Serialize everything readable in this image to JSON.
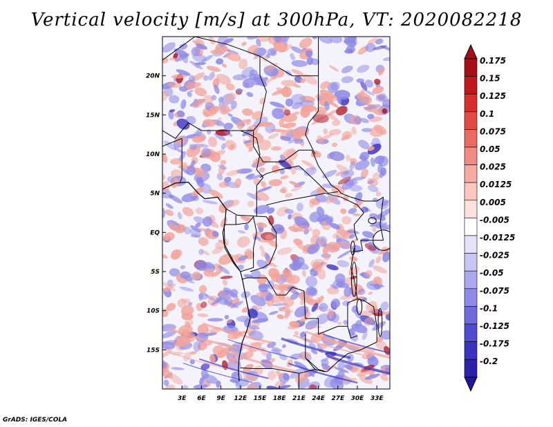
{
  "title": "Vertical velocity [m/s] at 300hPa, VT: 2020082218",
  "credit": "GrADS: IGES/COLA",
  "map": {
    "lon_range": [
      0,
      35
    ],
    "lat_range": [
      -20,
      25
    ],
    "lat_ticks": [
      {
        "value": 20,
        "label": "20N"
      },
      {
        "value": 15,
        "label": "15N"
      },
      {
        "value": 10,
        "label": "10N"
      },
      {
        "value": 5,
        "label": "5N"
      },
      {
        "value": 0,
        "label": "EQ"
      },
      {
        "value": -5,
        "label": "5S"
      },
      {
        "value": -10,
        "label": "10S"
      },
      {
        "value": -15,
        "label": "15S"
      }
    ],
    "lon_ticks": [
      {
        "value": 3,
        "label": "3E"
      },
      {
        "value": 6,
        "label": "6E"
      },
      {
        "value": 9,
        "label": "9E"
      },
      {
        "value": 12,
        "label": "12E"
      },
      {
        "value": 15,
        "label": "15E"
      },
      {
        "value": 18,
        "label": "18E"
      },
      {
        "value": 21,
        "label": "21E"
      },
      {
        "value": 24,
        "label": "24E"
      },
      {
        "value": 27,
        "label": "27E"
      },
      {
        "value": 30,
        "label": "30E"
      },
      {
        "value": 33,
        "label": "33E"
      }
    ]
  },
  "colorbar": {
    "levels": [
      {
        "label": "0.175",
        "color": "#a50f15"
      },
      {
        "label": "0.15",
        "color": "#c0181e"
      },
      {
        "label": "0.125",
        "color": "#d7302a"
      },
      {
        "label": "0.1",
        "color": "#e34a42"
      },
      {
        "label": "0.075",
        "color": "#ea6a62"
      },
      {
        "label": "0.05",
        "color": "#f08a82"
      },
      {
        "label": "0.025",
        "color": "#f6aaa2"
      },
      {
        "label": "0.0125",
        "color": "#f9c6c0"
      },
      {
        "label": "0.005",
        "color": "#fce2dd"
      },
      {
        "label": "-0.005",
        "color": "#ffffff"
      },
      {
        "label": "-0.0125",
        "color": "#e4e2fb"
      },
      {
        "label": "-0.025",
        "color": "#c9c6f5"
      },
      {
        "label": "-0.05",
        "color": "#aca9ee"
      },
      {
        "label": "-0.075",
        "color": "#8e8ae6"
      },
      {
        "label": "-0.1",
        "color": "#706bdc"
      },
      {
        "label": "-0.125",
        "color": "#514ccf"
      },
      {
        "label": "-0.175",
        "color": "#3a33bf"
      },
      {
        "label": "-0.2",
        "color": "#2a21a8"
      }
    ],
    "top_extend_color": "#a50f15",
    "bottom_extend_color": "#1f1896",
    "border_color": "#000000"
  },
  "map_colors": {
    "up": "#f2a39a",
    "strong_up": "#b0182a",
    "down": "#8f8ae6",
    "strong_down": "#3f37c2",
    "neutral": "#ffffff",
    "boundary": "#000000"
  }
}
